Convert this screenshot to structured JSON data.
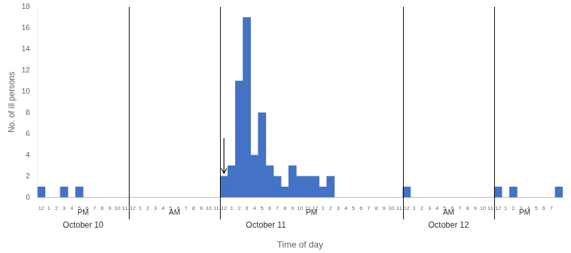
{
  "chart_data": {
    "type": "bar",
    "xlabel": "Time of day",
    "ylabel": "No. of ill persons",
    "categories": [
      "12",
      "1",
      "2",
      "3",
      "4",
      "5",
      "6",
      "7",
      "8",
      "9",
      "10",
      "11",
      "12",
      "1",
      "2",
      "3",
      "4",
      "5",
      "6",
      "7",
      "8",
      "9",
      "10",
      "11",
      "12",
      "1",
      "2",
      "3",
      "4",
      "5",
      "6",
      "7",
      "8",
      "9",
      "10",
      "11",
      "12",
      "1",
      "2",
      "3",
      "4",
      "5",
      "6",
      "7",
      "8",
      "9",
      "10",
      "11",
      "12",
      "1",
      "2",
      "3",
      "4",
      "5",
      "6",
      "7",
      "8",
      "9",
      "10",
      "11",
      "12",
      "1",
      "2",
      "3",
      "4",
      "5",
      "6",
      "7",
      null
    ],
    "values": [
      1,
      0,
      0,
      1,
      0,
      1,
      0,
      0,
      0,
      0,
      0,
      0,
      0,
      0,
      0,
      0,
      0,
      0,
      0,
      0,
      0,
      0,
      0,
      0,
      2,
      3,
      11,
      17,
      4,
      8,
      3,
      2,
      1,
      3,
      2,
      2,
      2,
      1,
      2,
      0,
      0,
      0,
      0,
      0,
      0,
      0,
      0,
      0,
      1,
      0,
      0,
      0,
      0,
      0,
      0,
      0,
      0,
      0,
      0,
      0,
      1,
      0,
      1,
      0,
      0,
      0,
      0,
      0,
      1
    ],
    "color": "#4472C4",
    "ylim": [
      0,
      18
    ],
    "yticks": [
      0,
      2,
      4,
      6,
      8,
      10,
      12,
      14,
      16,
      18
    ],
    "grid": false,
    "period_labels": [
      {
        "text": "PM",
        "x": 6
      },
      {
        "text": "AM",
        "x": 18
      },
      {
        "text": "PM",
        "x": 36
      },
      {
        "text": "AM",
        "x": 54
      },
      {
        "text": "PM",
        "x": 64
      }
    ],
    "day_labels": [
      {
        "text": "October 10",
        "x": 6
      },
      {
        "text": "October 11",
        "x": 30
      },
      {
        "text": "October 12",
        "x": 54
      }
    ],
    "dividers": [
      12,
      24,
      48,
      60
    ],
    "arrow": {
      "x": 24.5,
      "y_start": 5.6,
      "y_end": 2.3
    }
  }
}
